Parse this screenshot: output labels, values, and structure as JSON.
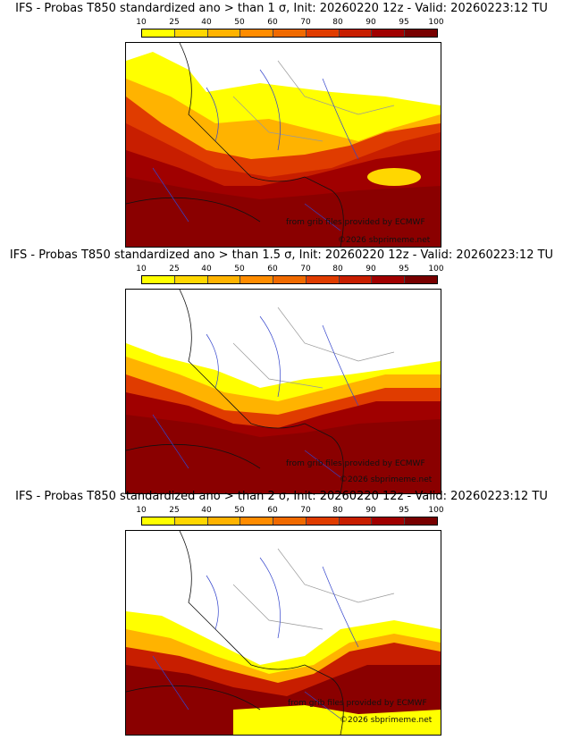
{
  "colorbar": {
    "ticks": [
      "10",
      "25",
      "40",
      "50",
      "60",
      "70",
      "80",
      "90",
      "95",
      "100"
    ],
    "colors": [
      "#ffff00",
      "#ffd700",
      "#ffb300",
      "#ff8c00",
      "#f06a00",
      "#e03c00",
      "#c81e00",
      "#a00000",
      "#780000"
    ]
  },
  "panels": [
    {
      "title": "IFS - Probas T850  standardized ano > than 1 σ, Init: 20260220 12z - Valid: 20260223:12 TU",
      "credit_source": "from grib files provided by ECMWF",
      "credit_site": "©2026 sbprimeme.net"
    },
    {
      "title": "IFS - Probas T850  standardized ano > than 1.5 σ, Init: 20260220 12z - Valid: 20260223:12 TU",
      "credit_source": "from grib files provided by ECMWF",
      "credit_site": "©2026 sbprimeme.net"
    },
    {
      "title": "IFS - Probas T850  standardized ano > than 2 σ, Init: 20260220 12z - Valid: 20260223:12 TU",
      "credit_source": "from grib files provided by ECMWF",
      "credit_site": "©2026 sbprimeme.net"
    }
  ]
}
